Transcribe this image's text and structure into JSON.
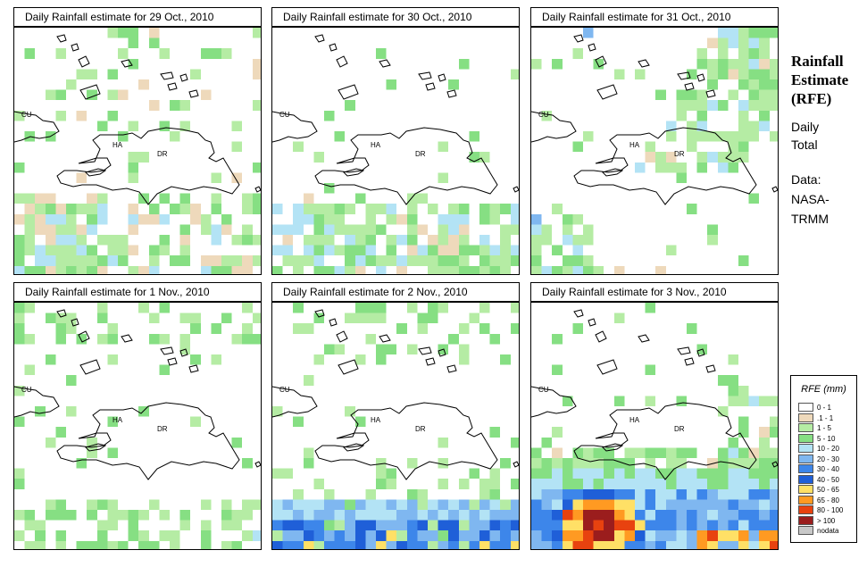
{
  "panels": [
    {
      "title": "Daily Rainfall estimate for  29 Oct., 2010",
      "profile": "scatter_sw",
      "seed": 29
    },
    {
      "title": "Daily Rainfall estimate for  30 Oct., 2010",
      "profile": "scatter_south",
      "seed": 30
    },
    {
      "title": "Daily Rainfall estimate for  31 Oct., 2010",
      "profile": "ne_band",
      "seed": 31
    },
    {
      "title": "Daily Rainfall estimate for  1 Nov., 2010",
      "profile": "sparse",
      "seed": 1
    },
    {
      "title": "Daily Rainfall estimate for  2 Nov., 2010",
      "profile": "south_heavy",
      "seed": 2
    },
    {
      "title": "Daily Rainfall estimate for  3 Nov., 2010",
      "profile": "storm",
      "seed": 3
    }
  ],
  "place_labels": {
    "cuba": "CU",
    "haiti": "HA",
    "dominican_republic": "DR"
  },
  "side": {
    "title_line1": "Rainfall",
    "title_line2": "Estimate",
    "title_line3": "(RFE)",
    "subtitle_line1": "Daily",
    "subtitle_line2": "Total",
    "source_line1": "Data:",
    "source_line2": "NASA-",
    "source_line3": "TRMM"
  },
  "legend": {
    "title": "RFE (mm)",
    "classes": [
      {
        "label": "0 - 1",
        "color": "#ffffff"
      },
      {
        "label": ".1 - 1",
        "color": "#eed9bb"
      },
      {
        "label": "1 - 5",
        "color": "#b5eca4"
      },
      {
        "label": "5 - 10",
        "color": "#86df83"
      },
      {
        "label": "10 - 20",
        "color": "#b3e3f5"
      },
      {
        "label": "20 - 30",
        "color": "#7fb7f0"
      },
      {
        "label": "30 - 40",
        "color": "#3d86ea"
      },
      {
        "label": "40 - 50",
        "color": "#1f5fd8"
      },
      {
        "label": "50 - 65",
        "color": "#ffe066"
      },
      {
        "label": "65 - 80",
        "color": "#ff9a22"
      },
      {
        "label": "80 - 100",
        "color": "#e8420f"
      },
      {
        "label": "> 100",
        "color": "#9b1d1d"
      },
      {
        "label": "nodata",
        "color": "#c8c8c8"
      }
    ]
  }
}
